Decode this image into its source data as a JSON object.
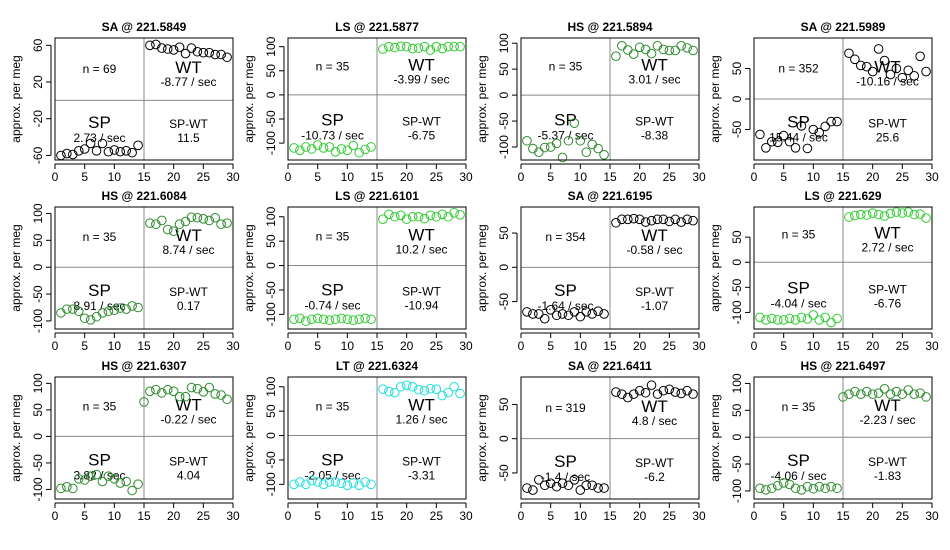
{
  "figure": {
    "ylabel": "approx. per meg",
    "x_ticks": [
      0,
      5,
      10,
      15,
      20,
      25,
      30
    ]
  },
  "chart_data": [
    {
      "type": "scatter",
      "title": "SA @ 221.5849",
      "color": "#000000",
      "xlim": [
        0,
        30
      ],
      "ylim": [
        -65,
        68
      ],
      "y_ticks": [
        60,
        20,
        -20,
        -60
      ],
      "n_label": "n = 69",
      "wt_label": "WT",
      "wt_rate": "-8.77 / sec",
      "sp_label": "SP",
      "sp_rate": "2.73 / sec",
      "spwt_label": "SP-WT",
      "spwt_value": "11.5",
      "series": [
        {
          "name": "SP",
          "x": [
            1,
            2,
            3,
            4,
            5,
            6,
            7,
            8,
            9,
            10,
            11,
            12,
            13,
            14
          ],
          "y": [
            -60,
            -58,
            -59,
            -55,
            -53,
            -47,
            -55,
            -47,
            -56,
            -54,
            -56,
            -55,
            -57,
            -49
          ]
        },
        {
          "name": "WT",
          "x": [
            16,
            17,
            18,
            19,
            20,
            21,
            22,
            23,
            24,
            25,
            26,
            27,
            28,
            29
          ],
          "y": [
            60,
            61,
            57,
            56,
            55,
            58,
            51,
            57,
            53,
            52,
            52,
            50,
            50,
            47
          ]
        }
      ]
    },
    {
      "type": "scatter",
      "title": "LS @ 221.5877",
      "color": "#33cc33",
      "xlim": [
        0,
        30
      ],
      "ylim": [
        -135,
        118
      ],
      "y_ticks": [
        100,
        50,
        0,
        -50,
        -100
      ],
      "n_label": "n = 35",
      "wt_label": "WT",
      "wt_rate": "-3.99 / sec",
      "sp_label": "SP",
      "sp_rate": "-10.73 / sec",
      "spwt_label": "SP-WT",
      "spwt_value": "-6.75",
      "series": [
        {
          "name": "SP",
          "x": [
            1,
            2,
            3,
            4,
            5,
            6,
            7,
            8,
            9,
            10,
            11,
            12,
            13,
            14
          ],
          "y": [
            -110,
            -115,
            -108,
            -112,
            -104,
            -110,
            -108,
            -118,
            -112,
            -115,
            -105,
            -120,
            -113,
            -108
          ]
        },
        {
          "name": "WT",
          "x": [
            16,
            17,
            18,
            19,
            20,
            21,
            22,
            23,
            24,
            25,
            26,
            27,
            28,
            29
          ],
          "y": [
            95,
            100,
            98,
            101,
            100,
            96,
            97,
            100,
            93,
            100,
            96,
            100,
            100,
            100
          ]
        }
      ]
    },
    {
      "type": "scatter",
      "title": "HS @ 221.5894",
      "color": "#2e8b2e",
      "xlim": [
        0,
        30
      ],
      "ylim": [
        -125,
        110
      ],
      "y_ticks": [
        100,
        50,
        0,
        -50,
        -100
      ],
      "n_label": "n = 35",
      "wt_label": "WT",
      "wt_rate": "3.01 / sec",
      "sp_label": "SP",
      "sp_rate": "-5.37 / sec",
      "spwt_label": "SP-WT",
      "spwt_value": "-8.38",
      "series": [
        {
          "name": "SP",
          "x": [
            1,
            2,
            3,
            4,
            5,
            6,
            7,
            8,
            9,
            10,
            11,
            12,
            13,
            14
          ],
          "y": [
            -88,
            -103,
            -110,
            -101,
            -100,
            -93,
            -120,
            -88,
            -54,
            -88,
            -110,
            -95,
            -103,
            -115
          ]
        },
        {
          "name": "WT",
          "x": [
            16,
            17,
            18,
            19,
            20,
            21,
            22,
            23,
            24,
            25,
            26,
            27,
            28,
            29
          ],
          "y": [
            75,
            95,
            87,
            79,
            92,
            88,
            80,
            95,
            88,
            86,
            86,
            95,
            91,
            86
          ]
        }
      ]
    },
    {
      "type": "scatter",
      "title": "SA @ 221.5989",
      "color": "#000000",
      "xlim": [
        0,
        30
      ],
      "ylim": [
        -100,
        100
      ],
      "y_ticks": [
        50,
        0,
        -50
      ],
      "n_label": "n = 352",
      "wt_label": "WT",
      "wt_rate": "-10.16 / sec",
      "sp_label": "SP",
      "sp_rate": "15.44 / sec",
      "spwt_label": "SP-WT",
      "spwt_value": "25.6",
      "series": [
        {
          "name": "SP",
          "x": [
            1,
            2,
            3,
            4,
            5,
            6,
            7,
            8,
            9,
            10,
            11,
            12,
            13,
            14
          ],
          "y": [
            -58,
            -80,
            -70,
            -71,
            -60,
            -70,
            -80,
            -44,
            -81,
            -50,
            -55,
            -45,
            -37,
            -37
          ]
        },
        {
          "name": "WT",
          "x": [
            16,
            17,
            18,
            19,
            20,
            21,
            22,
            23,
            24,
            25,
            26,
            27,
            28,
            29
          ],
          "y": [
            75,
            65,
            55,
            53,
            45,
            82,
            63,
            40,
            50,
            35,
            47,
            38,
            70,
            45
          ]
        }
      ]
    },
    {
      "type": "scatter",
      "title": "HS @ 221.6084",
      "color": "#2e8b2e",
      "xlim": [
        0,
        30
      ],
      "ylim": [
        -115,
        112
      ],
      "y_ticks": [
        100,
        50,
        0,
        -50,
        -100
      ],
      "n_label": "n = 35",
      "wt_label": "WT",
      "wt_rate": "8.74 / sec",
      "sp_label": "SP",
      "sp_rate": "8.91 / sec",
      "spwt_label": "SP-WT",
      "spwt_value": "0.17",
      "series": [
        {
          "name": "SP",
          "x": [
            1,
            2,
            3,
            4,
            5,
            6,
            7,
            8,
            9,
            10,
            11,
            12,
            13,
            14
          ],
          "y": [
            -85,
            -78,
            -78,
            -82,
            -95,
            -98,
            -92,
            -85,
            -82,
            -80,
            -76,
            -78,
            -72,
            -75
          ]
        },
        {
          "name": "WT",
          "x": [
            16,
            17,
            18,
            19,
            20,
            21,
            22,
            23,
            24,
            25,
            26,
            27,
            28,
            29
          ],
          "y": [
            82,
            80,
            87,
            70,
            67,
            80,
            85,
            93,
            92,
            90,
            87,
            92,
            80,
            82
          ]
        }
      ]
    },
    {
      "type": "scatter",
      "title": "LS @ 221.6101",
      "color": "#33cc33",
      "xlim": [
        0,
        30
      ],
      "ylim": [
        -130,
        120
      ],
      "y_ticks": [
        100,
        50,
        0,
        -50,
        -100
      ],
      "n_label": "n = 35",
      "wt_label": "WT",
      "wt_rate": "10.2 / sec",
      "sp_label": "SP",
      "sp_rate": "-0.74 / sec",
      "spwt_label": "SP-WT",
      "spwt_value": "-10.94",
      "series": [
        {
          "name": "SP",
          "x": [
            1,
            2,
            3,
            4,
            5,
            6,
            7,
            8,
            9,
            10,
            11,
            12,
            13,
            14
          ],
          "y": [
            -110,
            -108,
            -114,
            -110,
            -108,
            -110,
            -112,
            -110,
            -108,
            -110,
            -112,
            -110,
            -108,
            -110
          ]
        },
        {
          "name": "WT",
          "x": [
            16,
            17,
            18,
            19,
            20,
            21,
            22,
            23,
            24,
            25,
            26,
            27,
            28,
            29
          ],
          "y": [
            95,
            105,
            100,
            103,
            95,
            100,
            100,
            96,
            103,
            100,
            105,
            100,
            108,
            104
          ]
        }
      ]
    },
    {
      "type": "scatter",
      "title": "SA @ 221.6195",
      "color": "#000000",
      "xlim": [
        0,
        30
      ],
      "ylim": [
        -90,
        88
      ],
      "y_ticks": [
        50,
        0,
        -50
      ],
      "n_label": "n = 354",
      "wt_label": "WT",
      "wt_rate": "-0.58 / sec",
      "sp_label": "SP",
      "sp_rate": "-1.64 / sec",
      "spwt_label": "SP-WT",
      "spwt_value": "-1.07",
      "series": [
        {
          "name": "SP",
          "x": [
            1,
            2,
            3,
            4,
            5,
            6,
            7,
            8,
            9,
            10,
            11,
            12,
            13,
            14
          ],
          "y": [
            -65,
            -68,
            -68,
            -75,
            -62,
            -70,
            -68,
            -70,
            -65,
            -72,
            -65,
            -68,
            -64,
            -68
          ]
        },
        {
          "name": "WT",
          "x": [
            16,
            17,
            18,
            19,
            20,
            21,
            22,
            23,
            24,
            25,
            26,
            27,
            28,
            29
          ],
          "y": [
            65,
            70,
            70,
            71,
            70,
            66,
            68,
            70,
            70,
            67,
            70,
            66,
            70,
            68
          ]
        }
      ]
    },
    {
      "type": "scatter",
      "title": "LS @ 221.629",
      "color": "#33cc33",
      "xlim": [
        0,
        30
      ],
      "ylim": [
        -133,
        110
      ],
      "y_ticks": [
        50,
        0,
        -50,
        -100
      ],
      "n_label": "n = 35",
      "wt_label": "WT",
      "wt_rate": "2.72 / sec",
      "sp_label": "SP",
      "sp_rate": "-4.04 / sec",
      "spwt_label": "SP-WT",
      "spwt_value": "-6.76",
      "series": [
        {
          "name": "SP",
          "x": [
            1,
            2,
            3,
            4,
            5,
            6,
            7,
            8,
            9,
            10,
            11,
            12,
            13,
            14
          ],
          "y": [
            -110,
            -115,
            -112,
            -115,
            -115,
            -112,
            -115,
            -110,
            -113,
            -105,
            -115,
            -110,
            -120,
            -112
          ]
        },
        {
          "name": "WT",
          "x": [
            16,
            17,
            18,
            19,
            20,
            21,
            22,
            23,
            24,
            25,
            26,
            27,
            28,
            29
          ],
          "y": [
            90,
            93,
            95,
            94,
            98,
            95,
            92,
            97,
            100,
            98,
            100,
            95,
            96,
            88
          ]
        }
      ]
    },
    {
      "type": "scatter",
      "title": "HS @ 221.6307",
      "color": "#2e8b2e",
      "xlim": [
        0,
        30
      ],
      "ylim": [
        -118,
        112
      ],
      "y_ticks": [
        100,
        50,
        0,
        -50,
        -100
      ],
      "n_label": "n = 35",
      "wt_label": "WT",
      "wt_rate": "-0.22 / sec",
      "sp_label": "SP",
      "sp_rate": "3.82 / sec",
      "spwt_label": "SP-WT",
      "spwt_value": "4.04",
      "series": [
        {
          "name": "SP",
          "x": [
            1,
            2,
            3,
            4,
            5,
            6,
            7,
            8,
            9,
            10,
            11,
            12,
            13,
            14
          ],
          "y": [
            -98,
            -95,
            -98,
            -80,
            -82,
            -75,
            -72,
            -85,
            -75,
            -80,
            -88,
            -85,
            -102,
            -90
          ]
        },
        {
          "name": "WT",
          "x": [
            15,
            16,
            17,
            18,
            19,
            20,
            21,
            22,
            23,
            24,
            25,
            26,
            27,
            28,
            29
          ],
          "y": [
            65,
            85,
            88,
            82,
            88,
            85,
            75,
            75,
            92,
            90,
            84,
            92,
            80,
            78,
            70
          ]
        }
      ]
    },
    {
      "type": "scatter",
      "title": "LT @ 221.6324",
      "color": "#22e0e0",
      "xlim": [
        0,
        30
      ],
      "ylim": [
        -130,
        120
      ],
      "y_ticks": [
        100,
        50,
        0,
        -50,
        -100
      ],
      "n_label": "n = 35",
      "wt_label": "WT",
      "wt_rate": "1.26 / sec",
      "sp_label": "SP",
      "sp_rate": "-2.05 / sec",
      "spwt_label": "SP-WT",
      "spwt_value": "-3.31",
      "series": [
        {
          "name": "SP",
          "x": [
            1,
            2,
            3,
            4,
            5,
            6,
            7,
            8,
            9,
            10,
            11,
            12,
            13,
            14
          ],
          "y": [
            -100,
            -95,
            -100,
            -92,
            -95,
            -100,
            -95,
            -95,
            -98,
            -102,
            -97,
            -102,
            -95,
            -100
          ]
        },
        {
          "name": "WT",
          "x": [
            16,
            17,
            18,
            19,
            20,
            21,
            22,
            23,
            24,
            25,
            26,
            27,
            28,
            29
          ],
          "y": [
            95,
            90,
            88,
            100,
            103,
            100,
            94,
            92,
            96,
            95,
            82,
            88,
            100,
            86
          ]
        }
      ]
    },
    {
      "type": "scatter",
      "title": "SA @ 221.6411",
      "color": "#000000",
      "xlim": [
        0,
        30
      ],
      "ylim": [
        -88,
        90
      ],
      "y_ticks": [
        50,
        0,
        -50
      ],
      "n_label": "n = 319",
      "wt_label": "WT",
      "wt_rate": "4.8 / sec",
      "sp_label": "SP",
      "sp_rate": "-1.4 / sec",
      "spwt_label": "SP-WT",
      "spwt_value": "-6.2",
      "series": [
        {
          "name": "SP",
          "x": [
            1,
            2,
            3,
            4,
            5,
            6,
            7,
            8,
            9,
            10,
            11,
            12,
            13,
            14
          ],
          "y": [
            -72,
            -75,
            -60,
            -68,
            -65,
            -70,
            -65,
            -68,
            -60,
            -75,
            -68,
            -68,
            -72,
            -72
          ]
        },
        {
          "name": "WT",
          "x": [
            16,
            17,
            18,
            19,
            20,
            21,
            22,
            23,
            24,
            25,
            26,
            27,
            28,
            29
          ],
          "y": [
            68,
            65,
            60,
            65,
            70,
            67,
            78,
            65,
            70,
            72,
            68,
            66,
            70,
            65
          ]
        }
      ]
    },
    {
      "type": "scatter",
      "title": "HS @ 221.6497",
      "color": "#2e8b2e",
      "xlim": [
        0,
        30
      ],
      "ylim": [
        -115,
        112
      ],
      "y_ticks": [
        100,
        50,
        0,
        -50,
        -100
      ],
      "n_label": "n = 35",
      "wt_label": "WT",
      "wt_rate": "-2.23 / sec",
      "sp_label": "SP",
      "sp_rate": "-4.06 / sec",
      "spwt_label": "SP-WT",
      "spwt_value": "-1.83",
      "series": [
        {
          "name": "SP",
          "x": [
            1,
            2,
            3,
            4,
            5,
            6,
            7,
            8,
            9,
            10,
            11,
            12,
            13,
            14
          ],
          "y": [
            -95,
            -98,
            -95,
            -90,
            -85,
            -88,
            -95,
            -98,
            -92,
            -96,
            -92,
            -95,
            -92,
            -95
          ]
        },
        {
          "name": "WT",
          "x": [
            15,
            16,
            17,
            18,
            19,
            20,
            21,
            22,
            23,
            24,
            25,
            26,
            27,
            28,
            29
          ],
          "y": [
            75,
            80,
            85,
            80,
            85,
            80,
            82,
            90,
            80,
            85,
            80,
            88,
            80,
            82,
            75
          ]
        }
      ]
    }
  ]
}
